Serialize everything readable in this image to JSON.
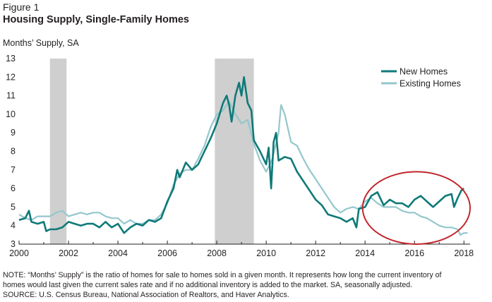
{
  "figure_label": "Figure 1",
  "title": "Housing Supply, Single-Family Homes",
  "ylabel": "Months’ Supply, SA",
  "note_line1": "NOTE: “Months’ Supply” is the ratio of homes for sale to homes sold in a given month. It represents how long the current inventory of",
  "note_line2": "homes would last given the current sales rate and if no additional inventory is added to the market. SA, seasonally adjusted.",
  "source": "SOURCE: U.S. Census Bureau, National Association of Realtors, and Haver Analytics.",
  "colors": {
    "new": "#0e7a78",
    "existing": "#94c7cc",
    "recession": "#cfcfcf",
    "highlight": "#c0272d"
  },
  "chart_data": {
    "type": "line",
    "title": "Housing Supply, Single-Family Homes",
    "ylabel": "Months’ Supply, SA",
    "xlim": [
      2000,
      2018.25
    ],
    "ylim": [
      3,
      13
    ],
    "x_ticks": [
      "2000",
      "2002",
      "2004",
      "2006",
      "2008",
      "2010",
      "2012",
      "2014",
      "2016",
      "2018"
    ],
    "y_ticks": [
      "3",
      "4",
      "5",
      "6",
      "7",
      "8",
      "9",
      "10",
      "11",
      "12",
      "13"
    ],
    "legend_position": "top-right",
    "grid": false,
    "recessions": [
      [
        2001.25,
        2001.92
      ],
      [
        2007.92,
        2009.5
      ]
    ],
    "highlight_region": {
      "x": [
        2013.9,
        2018.25
      ],
      "y": [
        3.0,
        6.9
      ],
      "label": ""
    },
    "series": [
      {
        "name": "New Homes",
        "points": [
          [
            2000.0,
            4.3
          ],
          [
            2000.25,
            4.4
          ],
          [
            2000.4,
            4.8
          ],
          [
            2000.5,
            4.2
          ],
          [
            2000.75,
            4.1
          ],
          [
            2001.0,
            4.2
          ],
          [
            2001.1,
            3.7
          ],
          [
            2001.25,
            3.8
          ],
          [
            2001.5,
            3.8
          ],
          [
            2001.75,
            3.9
          ],
          [
            2002.0,
            4.2
          ],
          [
            2002.25,
            4.1
          ],
          [
            2002.5,
            4.0
          ],
          [
            2002.75,
            4.1
          ],
          [
            2003.0,
            4.1
          ],
          [
            2003.25,
            3.9
          ],
          [
            2003.5,
            4.2
          ],
          [
            2003.75,
            3.9
          ],
          [
            2004.0,
            4.1
          ],
          [
            2004.25,
            3.6
          ],
          [
            2004.5,
            3.9
          ],
          [
            2004.75,
            4.1
          ],
          [
            2005.0,
            4.0
          ],
          [
            2005.25,
            4.3
          ],
          [
            2005.5,
            4.2
          ],
          [
            2005.75,
            4.4
          ],
          [
            2006.0,
            5.3
          ],
          [
            2006.25,
            6.0
          ],
          [
            2006.4,
            7.0
          ],
          [
            2006.5,
            6.6
          ],
          [
            2006.75,
            7.4
          ],
          [
            2007.0,
            7.0
          ],
          [
            2007.25,
            7.3
          ],
          [
            2007.5,
            8.0
          ],
          [
            2007.75,
            8.7
          ],
          [
            2008.0,
            9.5
          ],
          [
            2008.25,
            10.6
          ],
          [
            2008.4,
            11.0
          ],
          [
            2008.5,
            10.5
          ],
          [
            2008.6,
            9.6
          ],
          [
            2008.75,
            11.0
          ],
          [
            2008.9,
            11.7
          ],
          [
            2009.0,
            11.0
          ],
          [
            2009.1,
            12.0
          ],
          [
            2009.25,
            10.6
          ],
          [
            2009.4,
            10.2
          ],
          [
            2009.5,
            8.6
          ],
          [
            2009.75,
            8.0
          ],
          [
            2010.0,
            7.3
          ],
          [
            2010.1,
            8.2
          ],
          [
            2010.2,
            6.0
          ],
          [
            2010.3,
            8.5
          ],
          [
            2010.4,
            9.0
          ],
          [
            2010.5,
            7.5
          ],
          [
            2010.75,
            7.7
          ],
          [
            2011.0,
            7.6
          ],
          [
            2011.25,
            6.9
          ],
          [
            2011.5,
            6.4
          ],
          [
            2011.75,
            5.9
          ],
          [
            2012.0,
            5.4
          ],
          [
            2012.25,
            5.1
          ],
          [
            2012.5,
            4.6
          ],
          [
            2012.75,
            4.5
          ],
          [
            2013.0,
            4.4
          ],
          [
            2013.25,
            4.2
          ],
          [
            2013.5,
            4.4
          ],
          [
            2013.65,
            3.9
          ],
          [
            2013.75,
            4.9
          ],
          [
            2014.0,
            5.0
          ],
          [
            2014.25,
            5.6
          ],
          [
            2014.5,
            5.8
          ],
          [
            2014.75,
            5.1
          ],
          [
            2015.0,
            5.4
          ],
          [
            2015.25,
            5.2
          ],
          [
            2015.5,
            5.2
          ],
          [
            2015.75,
            5.0
          ],
          [
            2016.0,
            5.4
          ],
          [
            2016.25,
            5.6
          ],
          [
            2016.5,
            5.3
          ],
          [
            2016.75,
            5.0
          ],
          [
            2017.0,
            5.3
          ],
          [
            2017.25,
            5.6
          ],
          [
            2017.5,
            5.7
          ],
          [
            2017.6,
            5.0
          ],
          [
            2017.75,
            5.5
          ],
          [
            2017.9,
            5.9
          ],
          [
            2018.0,
            6.0
          ]
        ]
      },
      {
        "name": "Existing Homes",
        "points": [
          [
            2000.0,
            4.6
          ],
          [
            2000.25,
            4.4
          ],
          [
            2000.5,
            4.3
          ],
          [
            2000.75,
            4.5
          ],
          [
            2001.0,
            4.5
          ],
          [
            2001.25,
            4.5
          ],
          [
            2001.5,
            4.7
          ],
          [
            2001.75,
            4.8
          ],
          [
            2002.0,
            4.5
          ],
          [
            2002.25,
            4.6
          ],
          [
            2002.5,
            4.7
          ],
          [
            2002.75,
            4.6
          ],
          [
            2003.0,
            4.7
          ],
          [
            2003.25,
            4.7
          ],
          [
            2003.5,
            4.5
          ],
          [
            2003.75,
            4.4
          ],
          [
            2004.0,
            4.4
          ],
          [
            2004.25,
            4.1
          ],
          [
            2004.5,
            4.3
          ],
          [
            2004.75,
            4.1
          ],
          [
            2005.0,
            4.1
          ],
          [
            2005.25,
            4.3
          ],
          [
            2005.5,
            4.3
          ],
          [
            2005.75,
            4.6
          ],
          [
            2006.0,
            5.2
          ],
          [
            2006.25,
            6.2
          ],
          [
            2006.5,
            6.8
          ],
          [
            2006.75,
            7.0
          ],
          [
            2007.0,
            7.0
          ],
          [
            2007.25,
            7.6
          ],
          [
            2007.5,
            8.3
          ],
          [
            2007.75,
            9.3
          ],
          [
            2008.0,
            10.0
          ],
          [
            2008.25,
            10.2
          ],
          [
            2008.5,
            10.7
          ],
          [
            2008.75,
            10.0
          ],
          [
            2009.0,
            9.5
          ],
          [
            2009.25,
            9.7
          ],
          [
            2009.5,
            8.4
          ],
          [
            2009.75,
            7.5
          ],
          [
            2010.0,
            6.9
          ],
          [
            2010.25,
            7.6
          ],
          [
            2010.5,
            9.0
          ],
          [
            2010.6,
            10.5
          ],
          [
            2010.75,
            10.0
          ],
          [
            2011.0,
            8.5
          ],
          [
            2011.25,
            8.3
          ],
          [
            2011.5,
            7.6
          ],
          [
            2011.75,
            7.0
          ],
          [
            2012.0,
            6.5
          ],
          [
            2012.25,
            6.0
          ],
          [
            2012.5,
            5.5
          ],
          [
            2012.75,
            5.0
          ],
          [
            2013.0,
            4.7
          ],
          [
            2013.25,
            4.9
          ],
          [
            2013.5,
            5.0
          ],
          [
            2013.75,
            4.9
          ],
          [
            2014.0,
            5.3
          ],
          [
            2014.25,
            5.5
          ],
          [
            2014.5,
            5.2
          ],
          [
            2014.75,
            5.0
          ],
          [
            2015.0,
            5.0
          ],
          [
            2015.25,
            5.0
          ],
          [
            2015.5,
            4.8
          ],
          [
            2015.75,
            4.7
          ],
          [
            2016.0,
            4.7
          ],
          [
            2016.25,
            4.5
          ],
          [
            2016.5,
            4.4
          ],
          [
            2016.75,
            4.2
          ],
          [
            2017.0,
            4.0
          ],
          [
            2017.25,
            3.9
          ],
          [
            2017.5,
            3.9
          ],
          [
            2017.75,
            3.8
          ],
          [
            2017.85,
            3.5
          ],
          [
            2018.0,
            3.6
          ],
          [
            2018.15,
            3.6
          ]
        ]
      }
    ]
  }
}
